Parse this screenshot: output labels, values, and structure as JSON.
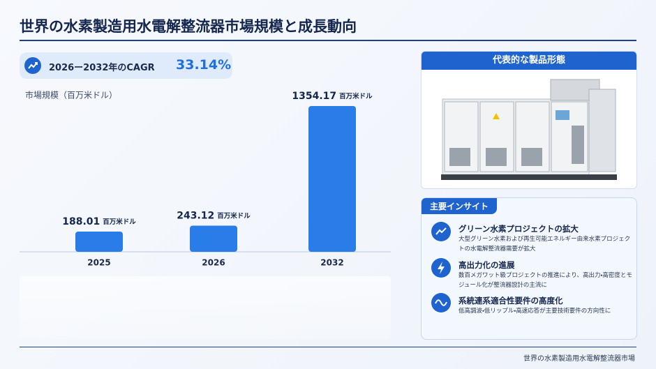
{
  "header": {
    "title": "世界の水素製造用水電解整流器市場規模と成長動向"
  },
  "cagr": {
    "label": "2026ー2032年のCAGR",
    "value": "33.14%"
  },
  "chart_data": {
    "type": "bar",
    "ylabel": "市場規模（百万米ドル）",
    "categories": [
      "2025",
      "2026",
      "2032"
    ],
    "values": [
      188.01,
      243.12,
      1354.17
    ],
    "unit": "百万米ドル",
    "color": "#2a7de9"
  },
  "product": {
    "title": "代表的な製品形態"
  },
  "insights": {
    "title": "主要インサイト",
    "items": [
      {
        "title": "グリーン水素プロジェクトの拡大",
        "description": "大型グリーン水素および再生可能エネルギー由来水素プロジェクトの水電解整流器需要が拡大"
      },
      {
        "title": "高出力化の進展",
        "description": "数百メガワット級プロジェクトの推進により、高出力・高密度とモジュール化が整流器設計の主流に"
      },
      {
        "title": "系統連系適合性要件の高度化",
        "description": "低高調波・低リップル・高速応答が主要技術要件の方向性に"
      }
    ]
  },
  "footer": {
    "text": "世界の水素製造用水電解整流器市場"
  }
}
